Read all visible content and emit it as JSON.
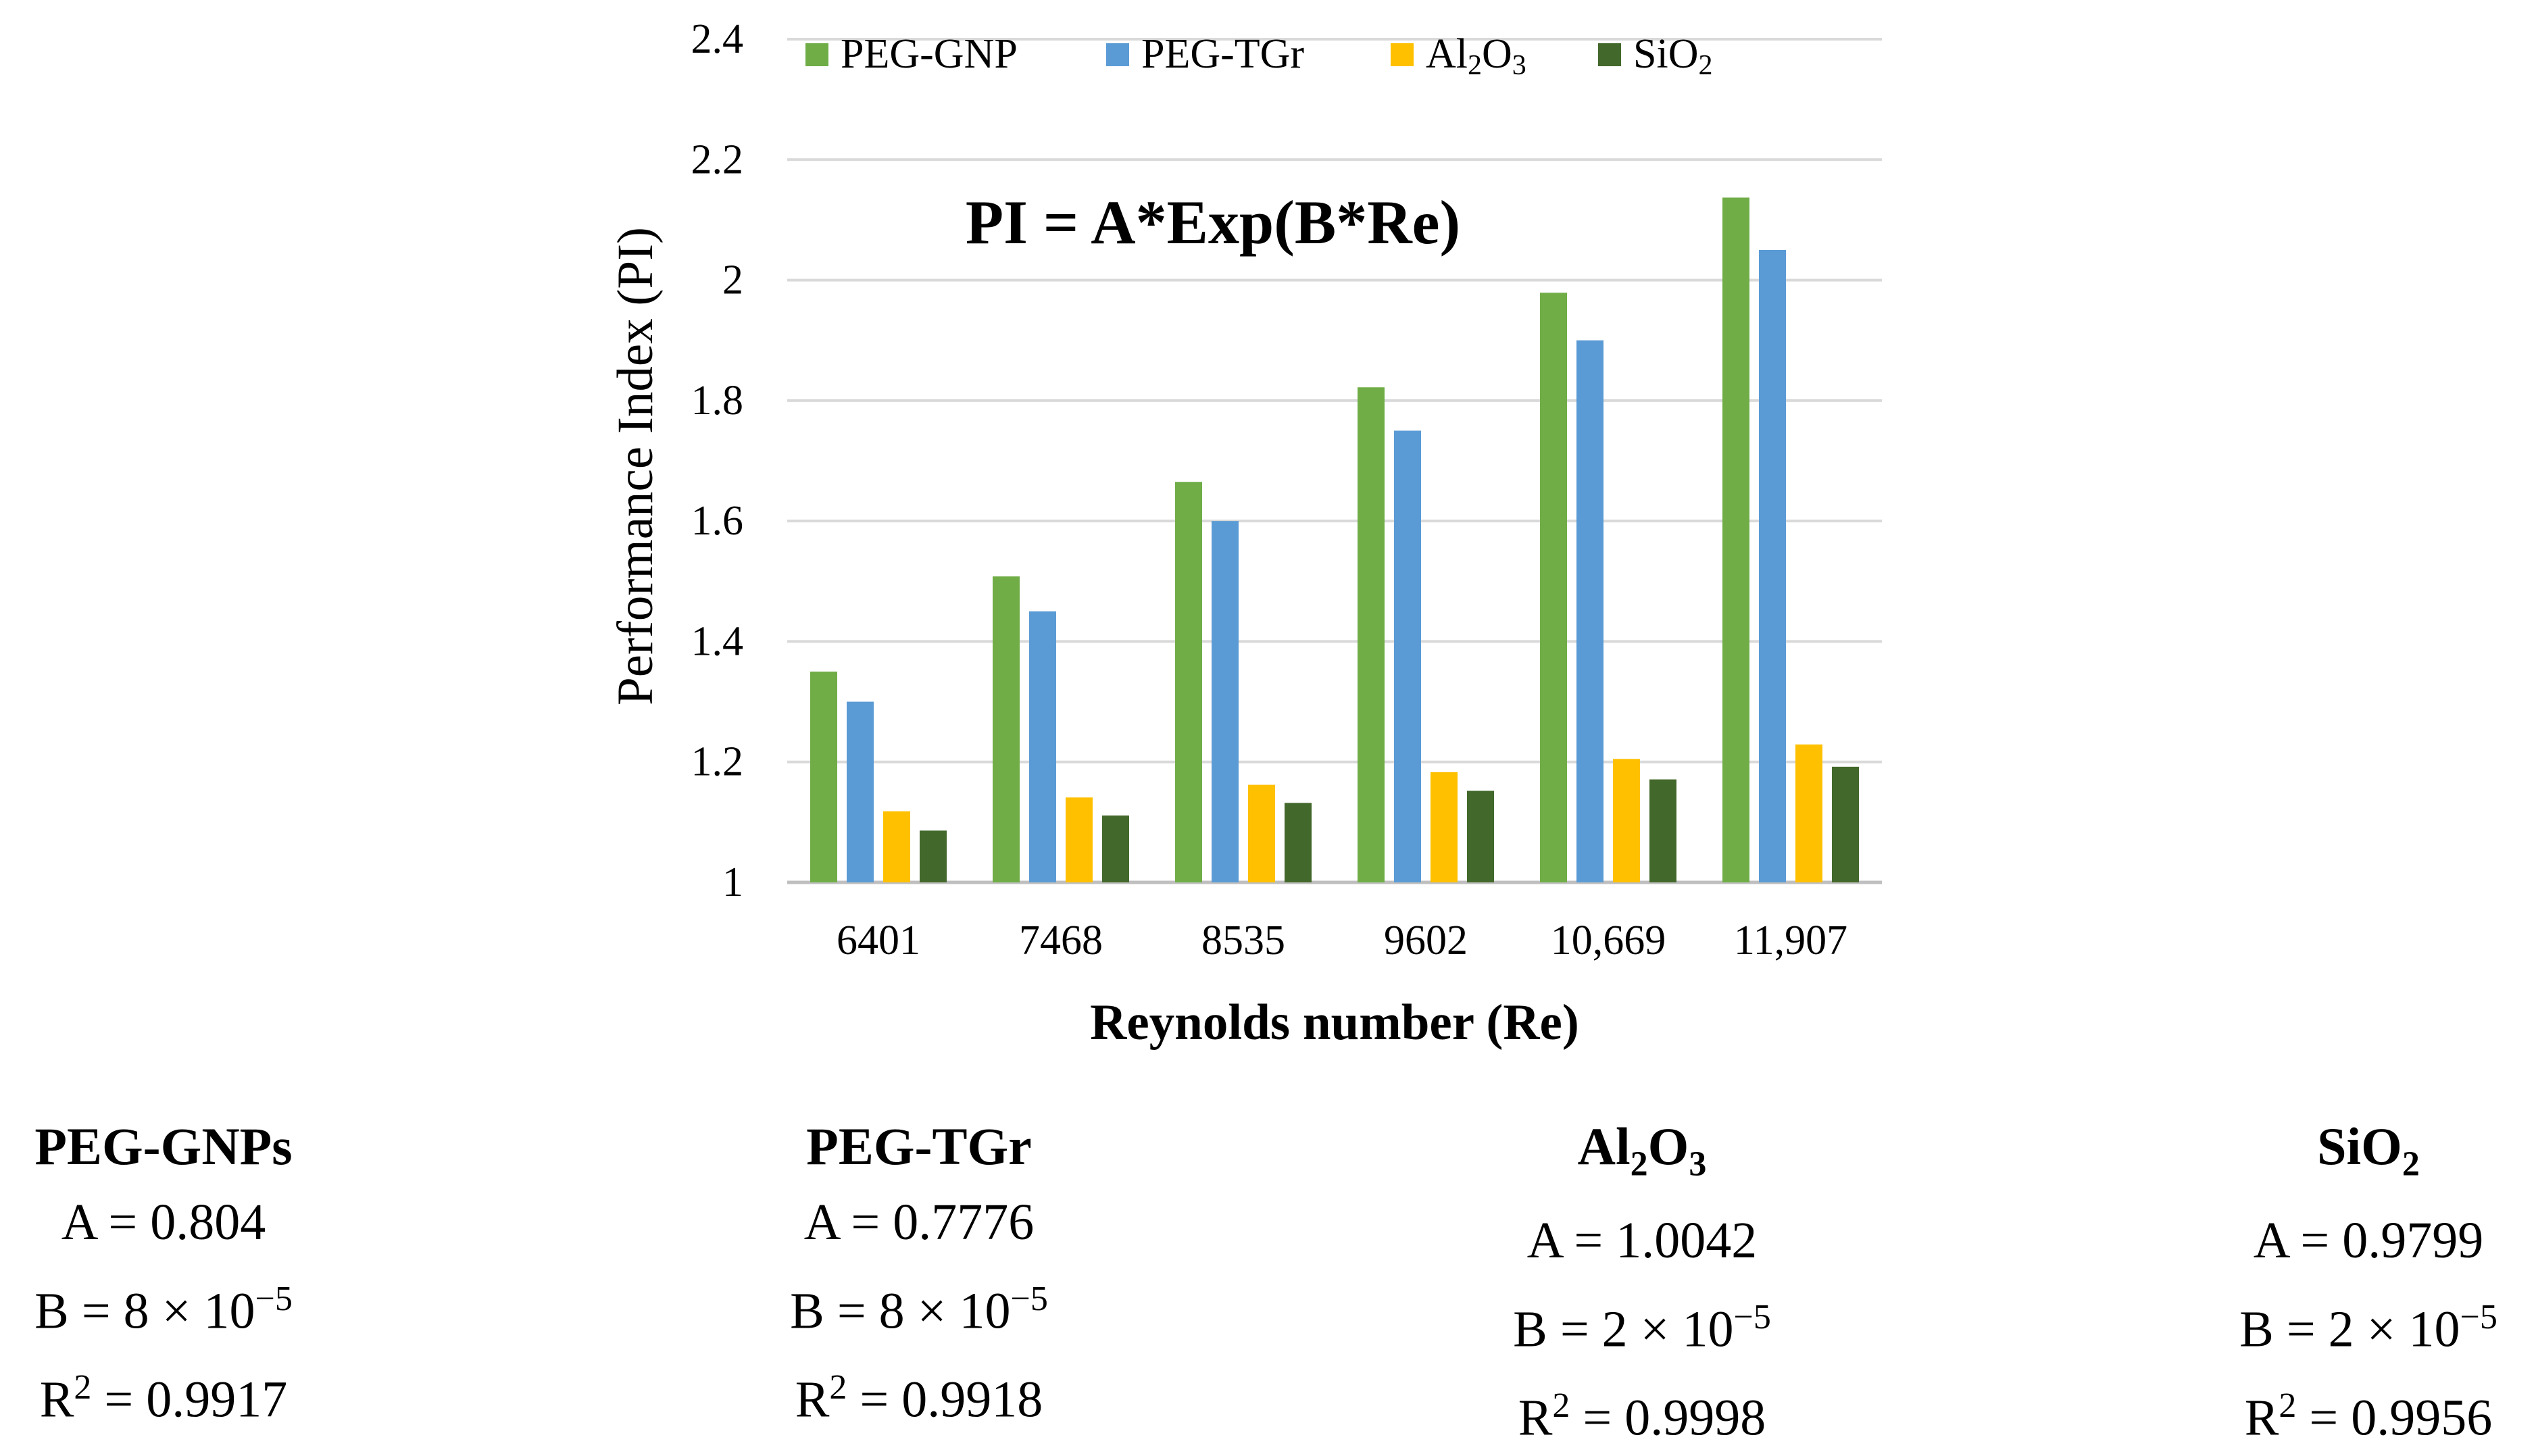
{
  "chart_data": {
    "type": "bar",
    "formula": "PI = A*Exp(B*Re)",
    "xlabel": "Reynolds number (Re)",
    "ylabel": "Performance Index (PI)",
    "ylim": [
      1,
      2.4
    ],
    "yticks": [
      "1",
      "1.2",
      "1.4",
      "1.6",
      "1.8",
      "2",
      "2.2",
      "2.4"
    ],
    "categories": [
      "6401",
      "7468",
      "8535",
      "9602",
      "10,669",
      "11,907"
    ],
    "series": [
      {
        "name": "PEG-GNP",
        "legend_main": "PEG-GNP",
        "legend_sub": "",
        "legend_tail": "",
        "color": "#70ad47",
        "values": [
          1.35,
          1.508,
          1.665,
          1.822,
          1.979,
          2.137
        ]
      },
      {
        "name": "PEG-TGr",
        "legend_main": "PEG-TGr",
        "legend_sub": "",
        "legend_tail": "",
        "color": "#5b9bd5",
        "values": [
          1.3,
          1.45,
          1.6,
          1.75,
          1.9,
          2.05
        ]
      },
      {
        "name": "Al2O3",
        "legend_main": "Al",
        "legend_sub": "2",
        "legend_tail": "O",
        "legend_sub2": "3",
        "color": "#ffc000",
        "values": [
          1.118,
          1.141,
          1.162,
          1.183,
          1.205,
          1.229
        ]
      },
      {
        "name": "SiO2",
        "legend_main": "SiO",
        "legend_sub": "2",
        "legend_tail": "",
        "color": "#43682b",
        "values": [
          1.086,
          1.111,
          1.132,
          1.152,
          1.171,
          1.192
        ]
      }
    ]
  },
  "parameters": [
    {
      "name_main": "PEG-GNPs",
      "name_sub": "",
      "name_tail": "",
      "name_sub2": "",
      "a": "A = 0.804",
      "b_prefix": "B = 8 × 10",
      "b_exp": "−5",
      "r_prefix": "R",
      "r_exp": "2",
      "r_value": " = 0.9917"
    },
    {
      "name_main": "PEG-TGr",
      "name_sub": "",
      "name_tail": "",
      "name_sub2": "",
      "a": "A = 0.7776",
      "b_prefix": "B = 8 × 10",
      "b_exp": "−5",
      "r_prefix": "R",
      "r_exp": "2",
      "r_value": " = 0.9918"
    },
    {
      "name_main": "Al",
      "name_sub": "2",
      "name_tail": "O",
      "name_sub2": "3",
      "a": "A = 1.0042",
      "b_prefix": "B = 2 × 10",
      "b_exp": "−5",
      "r_prefix": "R",
      "r_exp": "2",
      "r_value": " = 0.9998"
    },
    {
      "name_main": "SiO",
      "name_sub": "2",
      "name_tail": "",
      "name_sub2": "",
      "a": "A = 0.9799",
      "b_prefix": "B = 2 × 10",
      "b_exp": "−5",
      "r_prefix": "R",
      "r_exp": "2",
      "r_value": " = 0.9956"
    }
  ]
}
